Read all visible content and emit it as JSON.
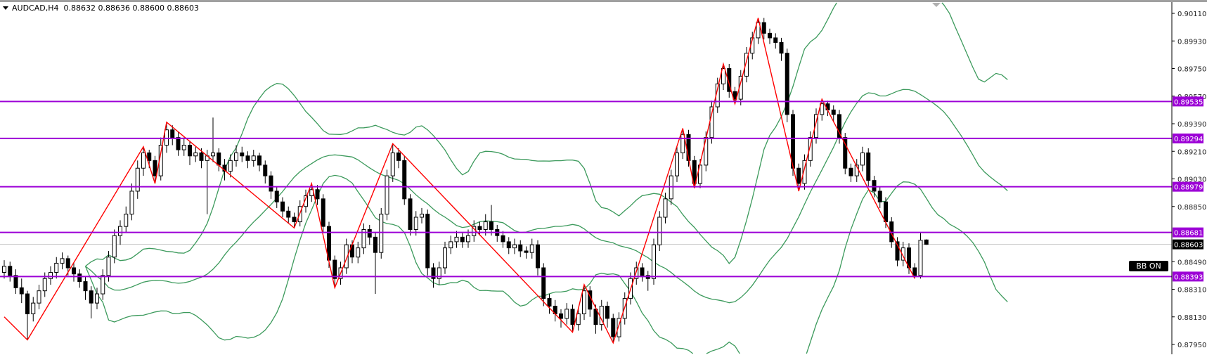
{
  "header": {
    "symbol_timeframe": "AUDCAD,H4",
    "ohlc": "0.88632 0.88636 0.88600 0.88603"
  },
  "indicator_label": "BB ON",
  "colors": {
    "zigzag": "#ff0000",
    "bands": "#3c9a5c",
    "levels": "#9c00d6",
    "bull_body": "#ffffff",
    "bear_body": "#000000",
    "current_price_line": "#c8c8c8"
  },
  "chart_data": {
    "type": "candlestick",
    "symbol": "AUDCAD",
    "timeframe": "H4",
    "y_axis": {
      "side": "right",
      "range": [
        0.8786,
        0.9019
      ],
      "ticks": [
        "0.90110",
        "0.89930",
        "0.89750",
        "0.89570",
        "0.89390",
        "0.89210",
        "0.89030",
        "0.88850",
        "0.88490",
        "0.88310",
        "0.88130",
        "0.87950"
      ]
    },
    "grid": false,
    "current_price": "0.88603",
    "horizontal_levels": [
      "0.89535",
      "0.89294",
      "0.88979",
      "0.88681",
      "0.88393"
    ],
    "bollinger": {
      "period": 20,
      "deviation": 2,
      "shift": 14
    },
    "zigzag_pivots": [
      [
        0,
        0.8813
      ],
      [
        4,
        0.8798
      ],
      [
        24,
        0.8924
      ],
      [
        26,
        0.89
      ],
      [
        28,
        0.894
      ],
      [
        50,
        0.8871
      ],
      [
        53,
        0.89
      ],
      [
        57,
        0.8832
      ],
      [
        67,
        0.8926
      ],
      [
        98,
        0.8803
      ],
      [
        100,
        0.8834
      ],
      [
        105,
        0.8796
      ],
      [
        117,
        0.8936
      ],
      [
        119,
        0.8897
      ],
      [
        124,
        0.8978
      ],
      [
        126,
        0.8952
      ],
      [
        130,
        0.9008
      ],
      [
        137,
        0.8895
      ],
      [
        141,
        0.8955
      ],
      [
        157,
        0.8838
      ]
    ],
    "candles": [
      [
        0.8842,
        0.885,
        0.8838,
        0.8846
      ],
      [
        0.8846,
        0.8849,
        0.8836,
        0.884
      ],
      [
        0.884,
        0.8844,
        0.8828,
        0.8832
      ],
      [
        0.8832,
        0.8838,
        0.8822,
        0.8828
      ],
      [
        0.8828,
        0.883,
        0.8798,
        0.8815
      ],
      [
        0.8815,
        0.8826,
        0.881,
        0.8822
      ],
      [
        0.8822,
        0.8834,
        0.8818,
        0.883
      ],
      [
        0.883,
        0.8842,
        0.8826,
        0.8838
      ],
      [
        0.8838,
        0.8846,
        0.8834,
        0.8842
      ],
      [
        0.8842,
        0.8852,
        0.8838,
        0.8848
      ],
      [
        0.8848,
        0.8855,
        0.8844,
        0.8851
      ],
      [
        0.8851,
        0.8853,
        0.884,
        0.8845
      ],
      [
        0.8845,
        0.8848,
        0.8836,
        0.8841
      ],
      [
        0.8841,
        0.8844,
        0.8832,
        0.8836
      ],
      [
        0.8836,
        0.8839,
        0.8824,
        0.883
      ],
      [
        0.883,
        0.8833,
        0.8812,
        0.8822
      ],
      [
        0.8822,
        0.8832,
        0.8818,
        0.8828
      ],
      [
        0.8828,
        0.8844,
        0.8824,
        0.884
      ],
      [
        0.884,
        0.8856,
        0.8836,
        0.8852
      ],
      [
        0.8852,
        0.887,
        0.8848,
        0.8866
      ],
      [
        0.8866,
        0.8876,
        0.886,
        0.8872
      ],
      [
        0.8872,
        0.8885,
        0.8868,
        0.888
      ],
      [
        0.888,
        0.89,
        0.8876,
        0.8895
      ],
      [
        0.8895,
        0.8915,
        0.889,
        0.891
      ],
      [
        0.891,
        0.8924,
        0.8905,
        0.892
      ],
      [
        0.892,
        0.8922,
        0.891,
        0.8915
      ],
      [
        0.8915,
        0.8918,
        0.89,
        0.8905
      ],
      [
        0.8905,
        0.893,
        0.8902,
        0.8925
      ],
      [
        0.8925,
        0.894,
        0.892,
        0.8935
      ],
      [
        0.8935,
        0.8938,
        0.8925,
        0.893
      ],
      [
        0.893,
        0.8934,
        0.8918,
        0.8922
      ],
      [
        0.8922,
        0.893,
        0.8918,
        0.8925
      ],
      [
        0.8925,
        0.8928,
        0.8912,
        0.8918
      ],
      [
        0.8918,
        0.8924,
        0.8914,
        0.892
      ],
      [
        0.892,
        0.8923,
        0.891,
        0.8915
      ],
      [
        0.8915,
        0.8922,
        0.888,
        0.8918
      ],
      [
        0.8918,
        0.8943,
        0.8914,
        0.892
      ],
      [
        0.892,
        0.8923,
        0.8908,
        0.8912
      ],
      [
        0.8912,
        0.8916,
        0.8902,
        0.8908
      ],
      [
        0.8908,
        0.8919,
        0.8904,
        0.8915
      ],
      [
        0.8915,
        0.8925,
        0.8911,
        0.892
      ],
      [
        0.892,
        0.8924,
        0.8914,
        0.8918
      ],
      [
        0.8918,
        0.8921,
        0.891,
        0.8915
      ],
      [
        0.8915,
        0.8922,
        0.8911,
        0.8918
      ],
      [
        0.8918,
        0.892,
        0.8908,
        0.8912
      ],
      [
        0.8912,
        0.8915,
        0.89,
        0.8905
      ],
      [
        0.8905,
        0.8908,
        0.889,
        0.8895
      ],
      [
        0.8895,
        0.8898,
        0.8884,
        0.8888
      ],
      [
        0.8888,
        0.8891,
        0.8878,
        0.8882
      ],
      [
        0.8882,
        0.8885,
        0.8874,
        0.8878
      ],
      [
        0.8878,
        0.8881,
        0.8871,
        0.8875
      ],
      [
        0.8875,
        0.8889,
        0.8872,
        0.8885
      ],
      [
        0.8885,
        0.8896,
        0.8881,
        0.8892
      ],
      [
        0.8892,
        0.89,
        0.8888,
        0.8896
      ],
      [
        0.8896,
        0.8899,
        0.8886,
        0.889
      ],
      [
        0.889,
        0.8893,
        0.8868,
        0.8872
      ],
      [
        0.8872,
        0.8875,
        0.8845,
        0.885
      ],
      [
        0.885,
        0.8853,
        0.8832,
        0.8838
      ],
      [
        0.8838,
        0.8849,
        0.8834,
        0.8845
      ],
      [
        0.8845,
        0.8864,
        0.8841,
        0.886
      ],
      [
        0.886,
        0.8863,
        0.8848,
        0.8852
      ],
      [
        0.8852,
        0.8862,
        0.8848,
        0.8858
      ],
      [
        0.8858,
        0.8874,
        0.8854,
        0.887
      ],
      [
        0.887,
        0.8873,
        0.886,
        0.8865
      ],
      [
        0.8865,
        0.8868,
        0.8828,
        0.8855
      ],
      [
        0.8855,
        0.8884,
        0.8851,
        0.888
      ],
      [
        0.888,
        0.8909,
        0.8876,
        0.8905
      ],
      [
        0.8905,
        0.8926,
        0.8901,
        0.892
      ],
      [
        0.892,
        0.8923,
        0.891,
        0.8915
      ],
      [
        0.8915,
        0.8918,
        0.8886,
        0.889
      ],
      [
        0.889,
        0.8893,
        0.8866,
        0.887
      ],
      [
        0.887,
        0.8882,
        0.8866,
        0.8878
      ],
      [
        0.8878,
        0.8884,
        0.8874,
        0.888
      ],
      [
        0.888,
        0.8883,
        0.884,
        0.8845
      ],
      [
        0.8845,
        0.8848,
        0.8832,
        0.8838
      ],
      [
        0.8838,
        0.8849,
        0.8834,
        0.8845
      ],
      [
        0.8845,
        0.8862,
        0.8841,
        0.8858
      ],
      [
        0.8858,
        0.8866,
        0.8854,
        0.8862
      ],
      [
        0.8862,
        0.8869,
        0.8858,
        0.8865
      ],
      [
        0.8865,
        0.8868,
        0.8858,
        0.8862
      ],
      [
        0.8862,
        0.887,
        0.8858,
        0.8866
      ],
      [
        0.8866,
        0.8876,
        0.8862,
        0.8872
      ],
      [
        0.8872,
        0.8875,
        0.8866,
        0.887
      ],
      [
        0.887,
        0.888,
        0.8866,
        0.8875
      ],
      [
        0.8875,
        0.8886,
        0.8866,
        0.887
      ],
      [
        0.887,
        0.8873,
        0.8862,
        0.8866
      ],
      [
        0.8866,
        0.8869,
        0.8858,
        0.8862
      ],
      [
        0.8862,
        0.8865,
        0.8854,
        0.8858
      ],
      [
        0.8858,
        0.8864,
        0.8854,
        0.886
      ],
      [
        0.886,
        0.8863,
        0.8852,
        0.8856
      ],
      [
        0.8856,
        0.8859,
        0.8851,
        0.8855
      ],
      [
        0.8855,
        0.8864,
        0.8851,
        0.886
      ],
      [
        0.886,
        0.8863,
        0.884,
        0.8845
      ],
      [
        0.8845,
        0.8848,
        0.882,
        0.8825
      ],
      [
        0.8825,
        0.8828,
        0.8815,
        0.882
      ],
      [
        0.882,
        0.8824,
        0.881,
        0.8815
      ],
      [
        0.8815,
        0.8818,
        0.8806,
        0.8812
      ],
      [
        0.8812,
        0.8822,
        0.8808,
        0.8818
      ],
      [
        0.8818,
        0.8821,
        0.8803,
        0.8808
      ],
      [
        0.8808,
        0.8819,
        0.8804,
        0.8815
      ],
      [
        0.8815,
        0.8834,
        0.8811,
        0.883
      ],
      [
        0.883,
        0.8833,
        0.8813,
        0.8818
      ],
      [
        0.8818,
        0.8821,
        0.8802,
        0.8808
      ],
      [
        0.8808,
        0.8824,
        0.8804,
        0.882
      ],
      [
        0.882,
        0.8823,
        0.8806,
        0.8812
      ],
      [
        0.8812,
        0.8815,
        0.8796,
        0.88
      ],
      [
        0.88,
        0.8816,
        0.8797,
        0.8812
      ],
      [
        0.8812,
        0.8829,
        0.8808,
        0.8825
      ],
      [
        0.8825,
        0.8842,
        0.8821,
        0.8838
      ],
      [
        0.8838,
        0.8849,
        0.8834,
        0.8845
      ],
      [
        0.8845,
        0.8848,
        0.8836,
        0.884
      ],
      [
        0.884,
        0.8843,
        0.883,
        0.8838
      ],
      [
        0.8838,
        0.8864,
        0.8834,
        0.886
      ],
      [
        0.886,
        0.8882,
        0.8856,
        0.8878
      ],
      [
        0.8878,
        0.8894,
        0.8874,
        0.889
      ],
      [
        0.889,
        0.8909,
        0.8886,
        0.8905
      ],
      [
        0.8905,
        0.8924,
        0.8901,
        0.892
      ],
      [
        0.892,
        0.8936,
        0.8916,
        0.8932
      ],
      [
        0.8932,
        0.8935,
        0.8911,
        0.8915
      ],
      [
        0.8915,
        0.8918,
        0.8897,
        0.89
      ],
      [
        0.89,
        0.8916,
        0.8897,
        0.8912
      ],
      [
        0.8912,
        0.8934,
        0.8908,
        0.893
      ],
      [
        0.893,
        0.8954,
        0.8926,
        0.895
      ],
      [
        0.895,
        0.8969,
        0.8946,
        0.8965
      ],
      [
        0.8965,
        0.8978,
        0.8961,
        0.8975
      ],
      [
        0.8975,
        0.8978,
        0.8956,
        0.896
      ],
      [
        0.896,
        0.8963,
        0.8952,
        0.8955
      ],
      [
        0.8955,
        0.8974,
        0.8951,
        0.897
      ],
      [
        0.897,
        0.8989,
        0.8966,
        0.8985
      ],
      [
        0.8985,
        0.8999,
        0.8981,
        0.8995
      ],
      [
        0.8995,
        0.9008,
        0.8991,
        0.9005
      ],
      [
        0.9005,
        0.9008,
        0.8994,
        0.8998
      ],
      [
        0.8998,
        0.9001,
        0.8991,
        0.8995
      ],
      [
        0.8995,
        0.8998,
        0.8988,
        0.8992
      ],
      [
        0.8992,
        0.8995,
        0.898,
        0.8985
      ],
      [
        0.8985,
        0.8988,
        0.894,
        0.8945
      ],
      [
        0.8945,
        0.8948,
        0.8905,
        0.891
      ],
      [
        0.891,
        0.8913,
        0.8895,
        0.89
      ],
      [
        0.89,
        0.8919,
        0.8896,
        0.8915
      ],
      [
        0.8915,
        0.8934,
        0.8911,
        0.893
      ],
      [
        0.893,
        0.8949,
        0.8926,
        0.8945
      ],
      [
        0.8945,
        0.8955,
        0.8941,
        0.8952
      ],
      [
        0.8952,
        0.8954,
        0.8944,
        0.8948
      ],
      [
        0.8948,
        0.8951,
        0.894,
        0.8945
      ],
      [
        0.8945,
        0.8948,
        0.8926,
        0.893
      ],
      [
        0.893,
        0.8933,
        0.8906,
        0.891
      ],
      [
        0.891,
        0.8913,
        0.8901,
        0.8905
      ],
      [
        0.8905,
        0.8916,
        0.8901,
        0.8912
      ],
      [
        0.8912,
        0.8924,
        0.8908,
        0.892
      ],
      [
        0.892,
        0.8923,
        0.8898,
        0.8902
      ],
      [
        0.8902,
        0.8905,
        0.8891,
        0.8895
      ],
      [
        0.8895,
        0.8898,
        0.8884,
        0.8888
      ],
      [
        0.8888,
        0.8891,
        0.8871,
        0.8875
      ],
      [
        0.8875,
        0.8878,
        0.8858,
        0.8862
      ],
      [
        0.8862,
        0.8865,
        0.8846,
        0.885
      ],
      [
        0.885,
        0.8862,
        0.8846,
        0.8858
      ],
      [
        0.8858,
        0.8861,
        0.8841,
        0.8845
      ],
      [
        0.8845,
        0.8848,
        0.8838,
        0.884
      ],
      [
        0.884,
        0.8868,
        0.8838,
        0.8863
      ],
      [
        0.88632,
        0.88636,
        0.886,
        0.88603
      ]
    ]
  }
}
